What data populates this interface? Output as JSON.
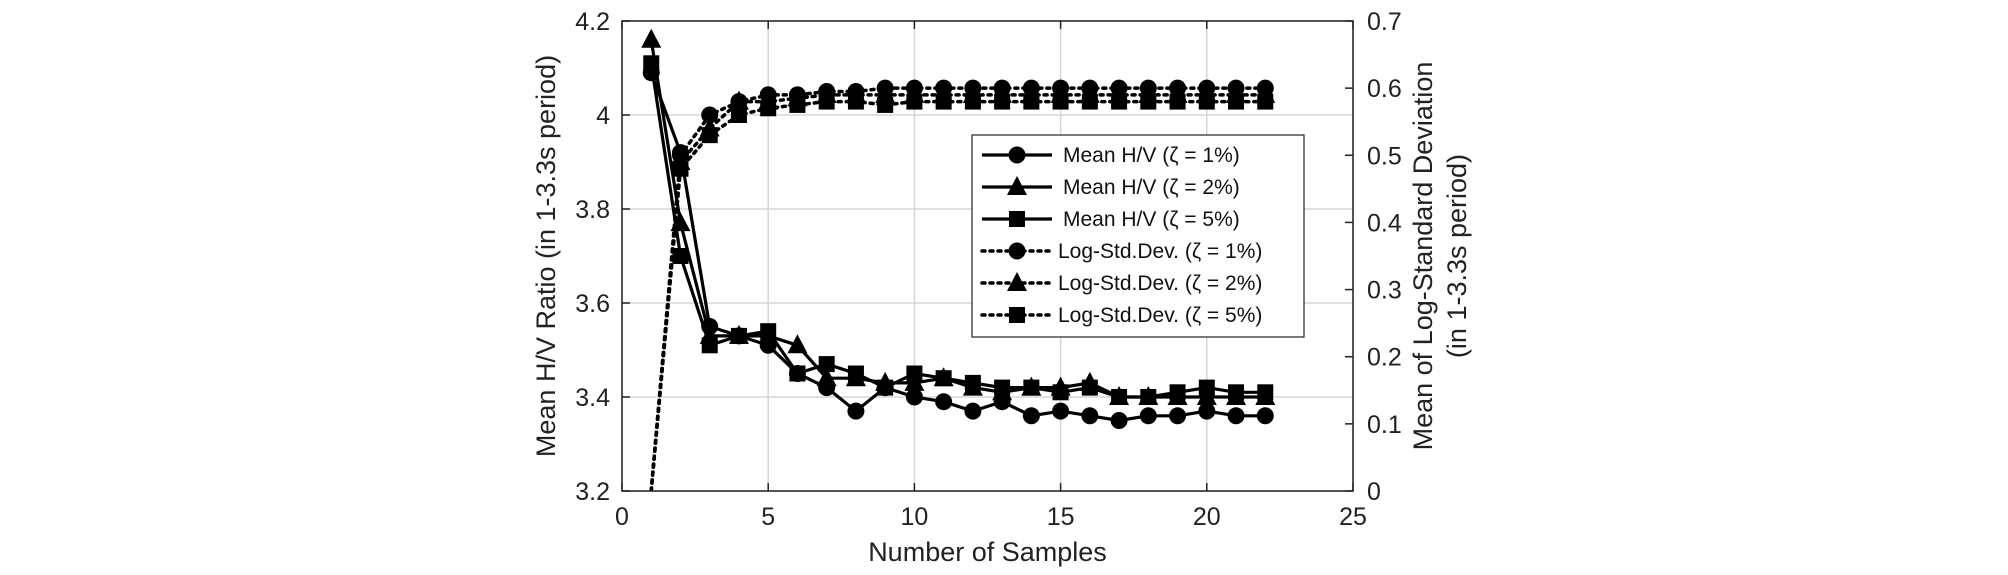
{
  "chart_data": {
    "type": "line",
    "xlabel": "Number of Samples",
    "ylabel_left": "Mean H/V Ratio (in 1-3.3s period)",
    "ylabel_right_lines": [
      "Mean of Log-Standard Deviation",
      "(in 1-3.3s period)"
    ],
    "xlim": [
      0,
      25
    ],
    "ylim_left": [
      3.2,
      4.2
    ],
    "ylim_right": [
      0,
      0.7
    ],
    "x_ticks": [
      "0",
      "5",
      "10",
      "15",
      "20",
      "25"
    ],
    "y_ticks_left": [
      "3.2",
      "3.4",
      "3.6",
      "3.8",
      "4",
      "4.2"
    ],
    "y_ticks_right": [
      "0",
      "0.1",
      "0.2",
      "0.3",
      "0.4",
      "0.5",
      "0.6",
      "0.7"
    ],
    "grid": true,
    "legend_position": "center-right",
    "x": [
      1,
      2,
      3,
      4,
      5,
      6,
      7,
      8,
      9,
      10,
      11,
      12,
      13,
      14,
      15,
      16,
      17,
      18,
      19,
      20,
      21,
      22
    ],
    "series": [
      {
        "name": "Mean H/V (ζ = 1%)",
        "axis": "left",
        "style": "solid",
        "marker": "circle",
        "values": [
          4.09,
          3.92,
          3.55,
          3.53,
          3.51,
          3.45,
          3.42,
          3.37,
          3.42,
          3.4,
          3.39,
          3.37,
          3.39,
          3.36,
          3.37,
          3.36,
          3.35,
          3.36,
          3.36,
          3.37,
          3.36,
          3.36
        ]
      },
      {
        "name": "Mean H/V (ζ = 2%)",
        "axis": "left",
        "style": "solid",
        "marker": "triangle",
        "values": [
          4.16,
          3.77,
          3.53,
          3.53,
          3.53,
          3.51,
          3.44,
          3.44,
          3.43,
          3.43,
          3.44,
          3.42,
          3.41,
          3.42,
          3.42,
          3.43,
          3.4,
          3.4,
          3.4,
          3.4,
          3.4,
          3.4
        ]
      },
      {
        "name": "Mean H/V (ζ = 5%)",
        "axis": "left",
        "style": "solid",
        "marker": "square",
        "values": [
          4.11,
          3.7,
          3.51,
          3.53,
          3.54,
          3.45,
          3.47,
          3.45,
          3.42,
          3.45,
          3.44,
          3.43,
          3.42,
          3.42,
          3.41,
          3.42,
          3.4,
          3.4,
          3.41,
          3.42,
          3.41,
          3.41
        ]
      },
      {
        "name": "Log-Std.Dev. (ζ = 1%)",
        "axis": "right",
        "style": "dotted",
        "marker": "circle",
        "values": [
          0.0,
          0.5,
          0.56,
          0.58,
          0.59,
          0.59,
          0.595,
          0.595,
          0.6,
          0.6,
          0.6,
          0.6,
          0.6,
          0.6,
          0.6,
          0.6,
          0.6,
          0.6,
          0.6,
          0.6,
          0.6,
          0.6
        ]
      },
      {
        "name": "Log-Std.Dev. (ζ = 2%)",
        "axis": "right",
        "style": "dotted",
        "marker": "triangle",
        "values": [
          0.0,
          0.49,
          0.54,
          0.58,
          0.58,
          0.585,
          0.59,
          0.59,
          0.59,
          0.59,
          0.59,
          0.59,
          0.59,
          0.59,
          0.59,
          0.59,
          0.59,
          0.59,
          0.59,
          0.59,
          0.59,
          0.59
        ]
      },
      {
        "name": "Log-Std.Dev. (ζ = 5%)",
        "axis": "right",
        "style": "dotted",
        "marker": "square",
        "values": [
          0.0,
          0.48,
          0.53,
          0.56,
          0.57,
          0.575,
          0.58,
          0.58,
          0.575,
          0.58,
          0.58,
          0.58,
          0.58,
          0.58,
          0.58,
          0.58,
          0.58,
          0.58,
          0.58,
          0.58,
          0.58,
          0.58
        ]
      }
    ]
  },
  "colors": {
    "line": "#000000",
    "grid": "#d6d6d6",
    "axis": "#222222"
  }
}
